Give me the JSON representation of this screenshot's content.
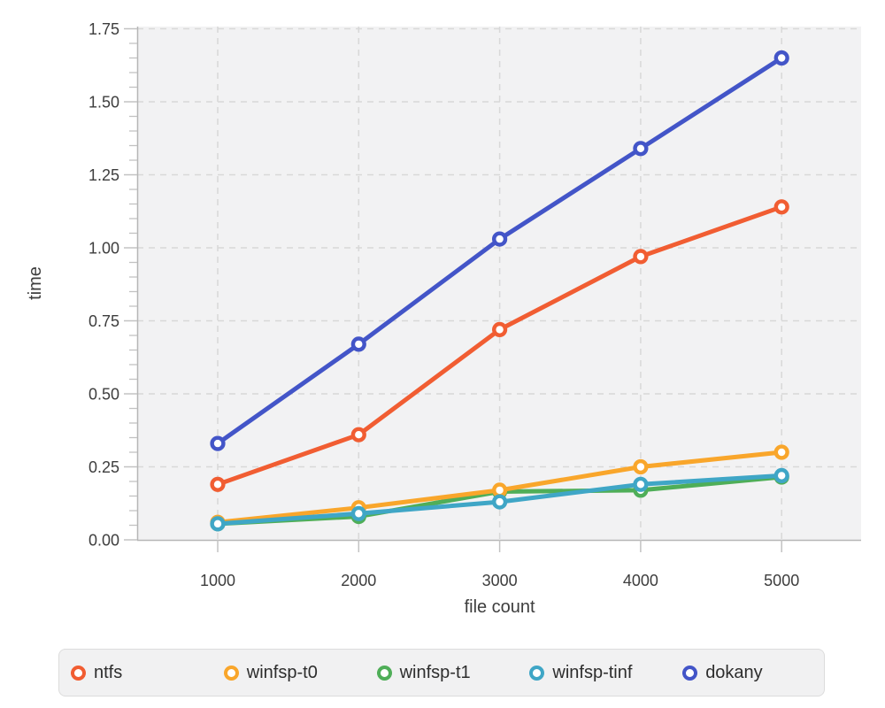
{
  "chart_data": {
    "type": "line",
    "title": "",
    "xlabel": "file count",
    "ylabel": "time",
    "x": [
      1000,
      2000,
      3000,
      4000,
      5000
    ],
    "xtick_labels": [
      "1000",
      "2000",
      "3000",
      "4000",
      "5000"
    ],
    "yticks": [
      0,
      0.25,
      0.5,
      0.75,
      1.0,
      1.25,
      1.5,
      1.75
    ],
    "ytick_labels": [
      "0.00",
      "0.25",
      "0.50",
      "0.75",
      "1.00",
      "1.25",
      "1.50",
      "1.75"
    ],
    "y_minor_step": 0.05,
    "ylim": [
      0,
      1.758
    ],
    "grid": true,
    "legend_position": "bottom",
    "panel_color": "#f2f2f3",
    "grid_color": "#d8d8d8",
    "axis_color": "#b6b6b6",
    "tick_color": "#c2c2c2",
    "label_color": "#3d3d3d",
    "series": [
      {
        "name": "ntfs",
        "color": "#f15d32",
        "values": [
          0.19,
          0.36,
          0.72,
          0.97,
          1.14
        ]
      },
      {
        "name": "winfsp-t0",
        "color": "#f9a62b",
        "values": [
          0.06,
          0.11,
          0.17,
          0.25,
          0.3
        ]
      },
      {
        "name": "winfsp-t1",
        "color": "#4fae58",
        "values": [
          0.055,
          0.08,
          0.165,
          0.17,
          0.215
        ]
      },
      {
        "name": "winfsp-tinf",
        "color": "#3fa6c6",
        "values": [
          0.055,
          0.09,
          0.13,
          0.19,
          0.22
        ]
      },
      {
        "name": "dokany",
        "color": "#4355c8",
        "values": [
          0.33,
          0.67,
          1.03,
          1.34,
          1.65
        ]
      }
    ]
  }
}
